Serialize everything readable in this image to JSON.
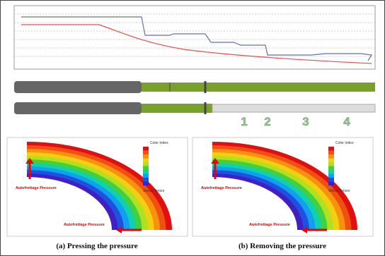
{
  "markers": [
    "1",
    "2",
    "3",
    "4"
  ],
  "panels": [
    {
      "legend_title": "Color Index",
      "legend_footer": "Stress Tensor",
      "top_label": "Autofrettage Pressure",
      "bottom_label": "Autofrettage Pressure",
      "caption": "(a) Pressing the pressure"
    },
    {
      "legend_title": "Color Index",
      "legend_footer": "Stress Tensor",
      "top_label": "Autofrettage Pressure",
      "bottom_label": "Autofrettage Pressure",
      "caption": "(b) Removing the pressure"
    }
  ]
}
